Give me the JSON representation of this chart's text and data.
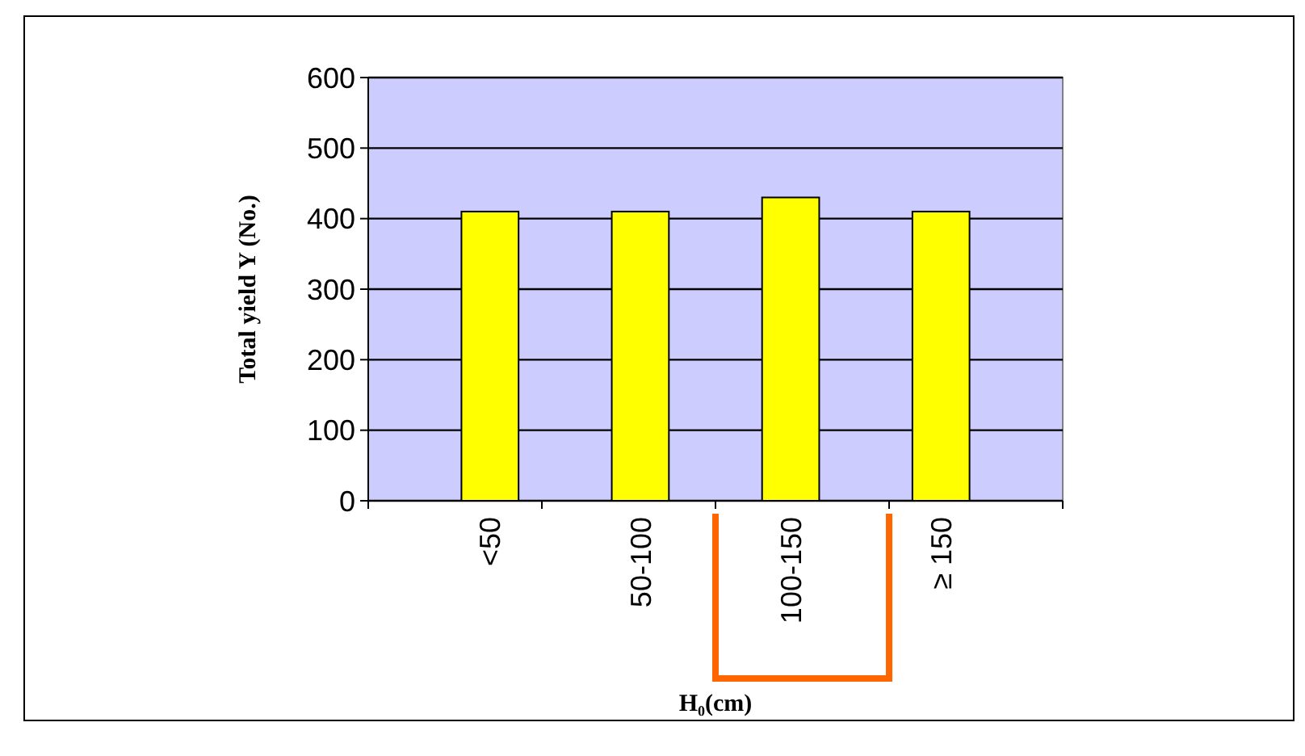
{
  "chart_data": {
    "type": "bar",
    "xlabel": "H₀(cm)",
    "ylabel": "Total yield Y (No.)",
    "categories": [
      "<50",
      "50-100",
      "100-150",
      "≥ 150"
    ],
    "values": [
      410,
      410,
      430,
      410
    ],
    "color": "#ffff00",
    "ylim": [
      0,
      600
    ],
    "yticks": [
      0,
      100,
      200,
      300,
      400,
      500,
      600
    ],
    "grid": "y"
  }
}
